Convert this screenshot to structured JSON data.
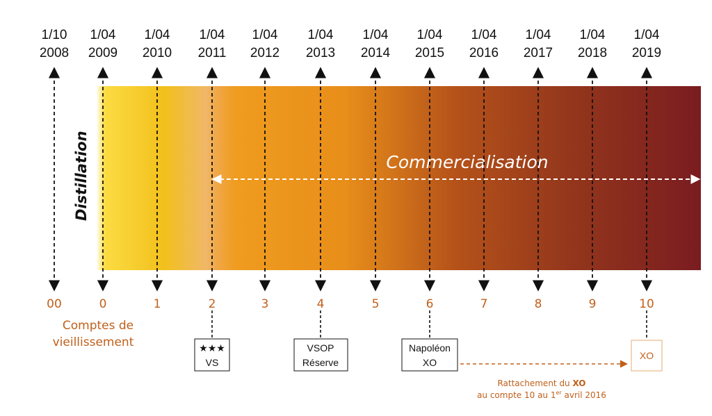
{
  "timeline": {
    "dates": [
      {
        "line1": "1/10",
        "line2": "2008"
      },
      {
        "line1": "1/04",
        "line2": "2009"
      },
      {
        "line1": "1/04",
        "line2": "2010"
      },
      {
        "line1": "1/04",
        "line2": "2011"
      },
      {
        "line1": "1/04",
        "line2": "2012"
      },
      {
        "line1": "1/04",
        "line2": "2013"
      },
      {
        "line1": "1/04",
        "line2": "2014"
      },
      {
        "line1": "1/04",
        "line2": "2015"
      },
      {
        "line1": "1/04",
        "line2": "2016"
      },
      {
        "line1": "1/04",
        "line2": "2017"
      },
      {
        "line1": "1/04",
        "line2": "2018"
      },
      {
        "line1": "1/04",
        "line2": "2019"
      }
    ],
    "comptes": [
      "00",
      "0",
      "1",
      "2",
      "3",
      "4",
      "5",
      "6",
      "7",
      "8",
      "9",
      "10"
    ]
  },
  "labels": {
    "distillation": "Distillation",
    "commercialisation": "Commercialisation",
    "comptes_line1": "Comptes de",
    "comptes_line2": "vieillissement"
  },
  "categories": {
    "vs_stars": "★★★",
    "vs": "VS",
    "vsop": "VSOP",
    "reserve": "Réserve",
    "napoleon": "Napoléon",
    "xo_napoleon": "XO",
    "xo": "XO"
  },
  "note": {
    "prefix": "Rattachement du ",
    "bold": "XO",
    "line2_a": "au compte 10 au 1",
    "line2_sup": "er",
    "line2_b": " avril 2016"
  },
  "colors": {
    "accent": "#c0601b",
    "gradient_start": "#f8d235",
    "gradient_mid": "#ef9a1d",
    "gradient_end": "#7a1c20"
  }
}
